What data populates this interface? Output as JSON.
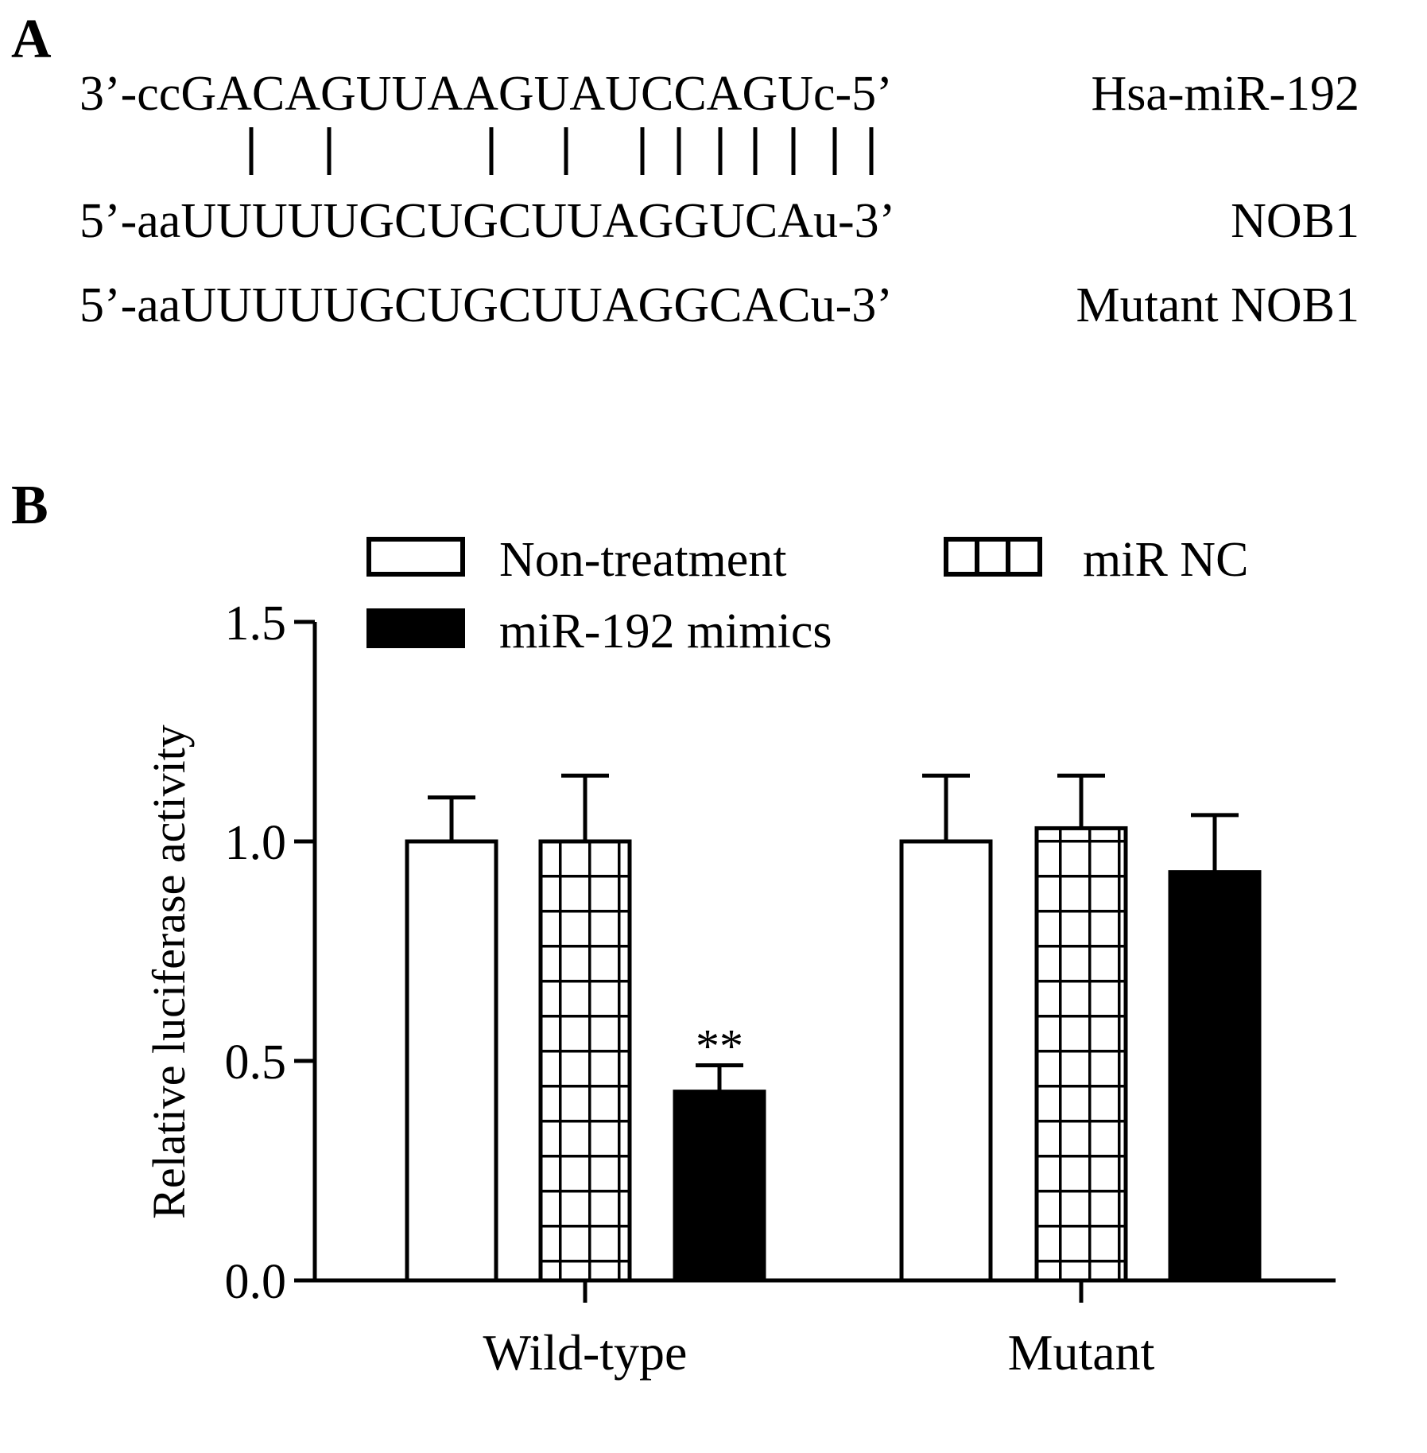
{
  "panels": {
    "a_label": "A",
    "b_label": "B"
  },
  "alignment": {
    "rows": [
      {
        "sequence": "3’-ccGACAGUUAAGUAUCCAGUc-5’",
        "name": "Hsa-miR-192"
      },
      {
        "sequence": "5’-aaUUUUUGCUGCUUAGGUCAu-3’",
        "name": "NOB1"
      },
      {
        "sequence": "5’-aaUUUUUGCUGCUUAGGCACu-3’",
        "name": "Mutant NOB1"
      }
    ],
    "pair_marker": "|",
    "pair_count": 11
  },
  "chart_data": {
    "type": "bar",
    "title": "",
    "xlabel": "",
    "ylabel": "Relative luciferase activity",
    "ylim": [
      0,
      1.5
    ],
    "yticks": [
      "0.0",
      "0.5",
      "1.0",
      "1.5"
    ],
    "categories": [
      "Wild-type",
      "Mutant"
    ],
    "legend_placement": "top",
    "series": [
      {
        "name": "Non-treatment",
        "values": [
          1.0,
          1.0
        ],
        "errors": [
          0.1,
          0.15
        ],
        "fill": "white"
      },
      {
        "name": "miR NC",
        "values": [
          1.0,
          1.03
        ],
        "errors": [
          0.15,
          0.12
        ],
        "fill": "grid"
      },
      {
        "name": "miR-192 mimics",
        "values": [
          0.43,
          0.93
        ],
        "errors": [
          0.06,
          0.13
        ],
        "fill": "black"
      }
    ],
    "annotations": [
      {
        "category": "Wild-type",
        "series": "miR-192 mimics",
        "text": "**"
      }
    ],
    "colors": {
      "stroke": "#000000",
      "fill_white": "#ffffff",
      "fill_black": "#000000"
    }
  }
}
